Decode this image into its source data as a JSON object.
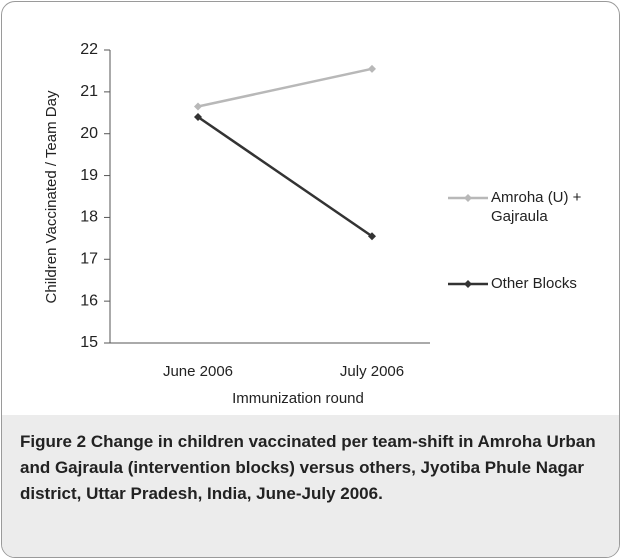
{
  "chart_data": {
    "type": "line",
    "categories": [
      "June 2006",
      "July 2006"
    ],
    "series": [
      {
        "name": "Amroha (U) + Gajraula",
        "color": "#b8b8b8",
        "values": [
          20.65,
          21.55
        ]
      },
      {
        "name": "Other Blocks",
        "color": "#333333",
        "values": [
          20.4,
          17.55
        ]
      }
    ],
    "ylim": [
      15,
      22
    ],
    "yticks": [
      15,
      16,
      17,
      18,
      19,
      20,
      21,
      22
    ],
    "ylabel": "Children Vaccinated / Team Day",
    "xlabel": "Immunization round",
    "legend": "right"
  },
  "caption": {
    "label": "Figure 2",
    "text": "Change in children vaccinated per team-shift in Amroha Urban and Gajraula (intervention blocks) versus others, Jyotiba Phule Nagar district, Uttar Pradesh, India, June-July 2006."
  }
}
